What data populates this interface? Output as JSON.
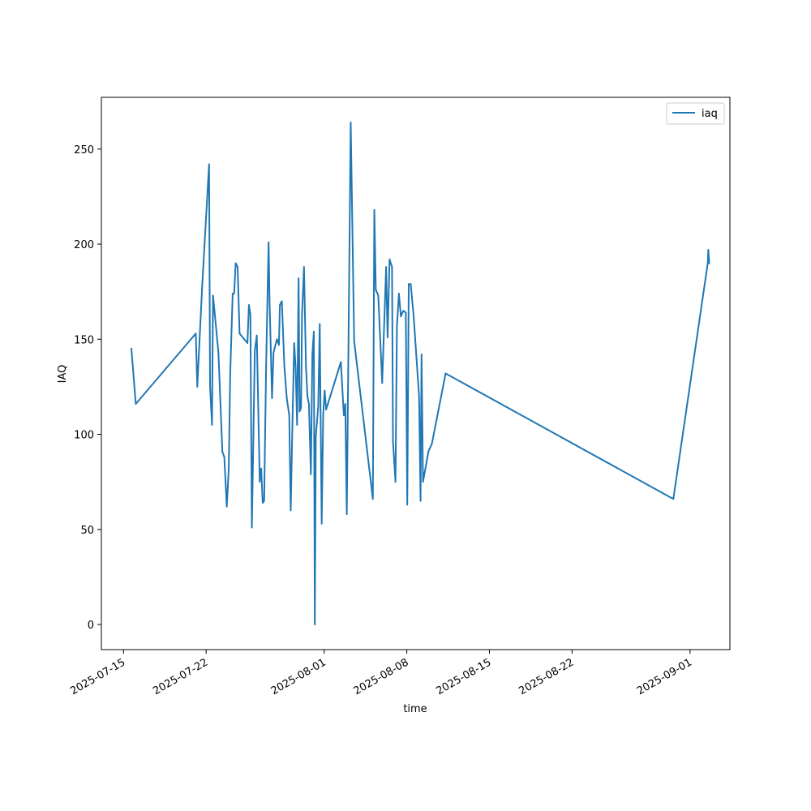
{
  "chart_data": {
    "type": "line",
    "xlabel": "time",
    "ylabel": "IAQ",
    "x_scale": "date",
    "xlim": [
      "2025-07-13 03:00",
      "2025-09-04 09:00"
    ],
    "ylim": [
      -13.2,
      277.2
    ],
    "x_ticks": [
      "2025-07-15",
      "2025-07-22",
      "2025-08-01",
      "2025-08-08",
      "2025-08-15",
      "2025-08-22",
      "2025-09-01"
    ],
    "y_ticks": [
      0,
      50,
      100,
      150,
      200,
      250
    ],
    "legend": {
      "position": "top-right",
      "entries": [
        "iaq"
      ]
    },
    "grid": false,
    "series": [
      {
        "name": "iaq",
        "color": "#1f77b4",
        "points": [
          [
            "2025-07-15 16:00",
            145
          ],
          [
            "2025-07-16 01:00",
            116
          ],
          [
            "2025-07-21 03:00",
            153
          ],
          [
            "2025-07-21 06:00",
            125
          ],
          [
            "2025-07-21 16:00",
            178
          ],
          [
            "2025-07-22 06:00",
            242
          ],
          [
            "2025-07-22 08:00",
            125
          ],
          [
            "2025-07-22 12:00",
            105
          ],
          [
            "2025-07-22 14:00",
            173
          ],
          [
            "2025-07-23 01:00",
            143
          ],
          [
            "2025-07-23 09:00",
            91
          ],
          [
            "2025-07-23 13:00",
            88
          ],
          [
            "2025-07-23 18:00",
            62
          ],
          [
            "2025-07-23 22:00",
            82
          ],
          [
            "2025-07-24 01:00",
            132
          ],
          [
            "2025-07-24 06:00",
            174
          ],
          [
            "2025-07-24 09:00",
            174
          ],
          [
            "2025-07-24 12:00",
            190
          ],
          [
            "2025-07-24 16:00",
            188
          ],
          [
            "2025-07-24 20:00",
            153
          ],
          [
            "2025-07-25 12:00",
            148
          ],
          [
            "2025-07-25 15:00",
            168
          ],
          [
            "2025-07-25 18:00",
            163
          ],
          [
            "2025-07-25 21:00",
            51
          ],
          [
            "2025-07-26 03:00",
            144
          ],
          [
            "2025-07-26 07:00",
            152
          ],
          [
            "2025-07-26 13:00",
            75
          ],
          [
            "2025-07-26 16:00",
            82
          ],
          [
            "2025-07-26 19:00",
            64
          ],
          [
            "2025-07-26 22:00",
            65
          ],
          [
            "2025-07-27 02:00",
            136
          ],
          [
            "2025-07-27 07:00",
            201
          ],
          [
            "2025-07-27 09:00",
            170
          ],
          [
            "2025-07-27 14:00",
            119
          ],
          [
            "2025-07-27 17:00",
            143
          ],
          [
            "2025-07-28 00:00",
            150
          ],
          [
            "2025-07-28 04:00",
            147
          ],
          [
            "2025-07-28 06:00",
            168
          ],
          [
            "2025-07-28 10:00",
            170
          ],
          [
            "2025-07-28 15:00",
            136
          ],
          [
            "2025-07-28 20:00",
            119
          ],
          [
            "2025-07-29 01:00",
            110
          ],
          [
            "2025-07-29 04:00",
            60
          ],
          [
            "2025-07-29 08:00",
            112
          ],
          [
            "2025-07-29 11:00",
            148
          ],
          [
            "2025-07-29 14:00",
            135
          ],
          [
            "2025-07-29 17:00",
            105
          ],
          [
            "2025-07-29 20:00",
            182
          ],
          [
            "2025-07-29 22:00",
            112
          ],
          [
            "2025-07-30 01:00",
            114
          ],
          [
            "2025-07-30 03:00",
            163
          ],
          [
            "2025-07-30 07:00",
            188
          ],
          [
            "2025-07-30 11:00",
            136
          ],
          [
            "2025-07-30 14:00",
            120
          ],
          [
            "2025-07-30 17:00",
            116
          ],
          [
            "2025-07-30 21:00",
            79
          ],
          [
            "2025-07-31 00:00",
            142
          ],
          [
            "2025-07-31 03:00",
            154
          ],
          [
            "2025-07-31 05:00",
            0
          ],
          [
            "2025-07-31 07:00",
            99
          ],
          [
            "2025-07-31 12:00",
            115
          ],
          [
            "2025-07-31 15:00",
            158
          ],
          [
            "2025-07-31 19:00",
            53
          ],
          [
            "2025-07-31 22:00",
            110
          ],
          [
            "2025-08-01 01:00",
            123
          ],
          [
            "2025-08-01 04:00",
            113
          ],
          [
            "2025-08-02 10:00",
            138
          ],
          [
            "2025-08-02 16:00",
            110
          ],
          [
            "2025-08-02 19:00",
            116
          ],
          [
            "2025-08-02 22:00",
            58
          ],
          [
            "2025-08-03 06:00",
            264
          ],
          [
            "2025-08-03 13:00",
            149
          ],
          [
            "2025-08-05 03:00",
            66
          ],
          [
            "2025-08-05 06:00",
            218
          ],
          [
            "2025-08-05 09:00",
            176
          ],
          [
            "2025-08-05 14:00",
            173
          ],
          [
            "2025-08-05 22:00",
            127
          ],
          [
            "2025-08-06 06:00",
            188
          ],
          [
            "2025-08-06 09:00",
            151
          ],
          [
            "2025-08-06 13:00",
            192
          ],
          [
            "2025-08-06 18:00",
            188
          ],
          [
            "2025-08-06 20:00",
            96
          ],
          [
            "2025-08-07 01:00",
            75
          ],
          [
            "2025-08-07 04:00",
            157
          ],
          [
            "2025-08-07 08:00",
            174
          ],
          [
            "2025-08-07 12:00",
            162
          ],
          [
            "2025-08-07 17:00",
            165
          ],
          [
            "2025-08-07 22:00",
            164
          ],
          [
            "2025-08-08 01:00",
            63
          ],
          [
            "2025-08-08 04:00",
            179
          ],
          [
            "2025-08-08 08:00",
            179
          ],
          [
            "2025-08-08 14:00",
            162
          ],
          [
            "2025-08-09 01:00",
            120
          ],
          [
            "2025-08-09 04:00",
            65
          ],
          [
            "2025-08-09 06:00",
            142
          ],
          [
            "2025-08-09 09:00",
            75
          ],
          [
            "2025-08-09 20:00",
            91
          ],
          [
            "2025-08-10 03:00",
            95
          ],
          [
            "2025-08-11 07:00",
            132
          ],
          [
            "2025-08-30 14:00",
            66
          ],
          [
            "2025-09-02 12:00",
            190
          ],
          [
            "2025-09-02 13:00",
            197
          ],
          [
            "2025-09-02 15:00",
            190
          ]
        ]
      }
    ]
  }
}
